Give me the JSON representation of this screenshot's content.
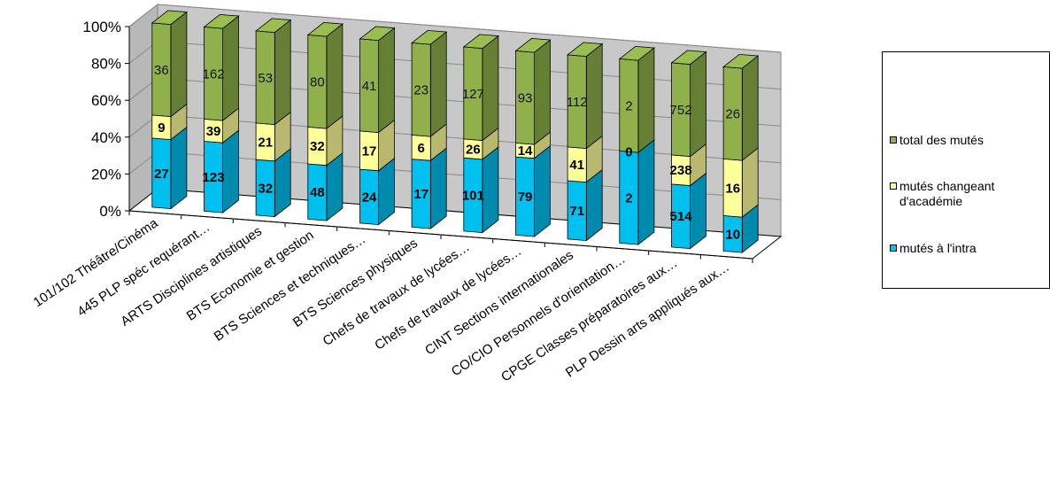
{
  "chart_data": {
    "type": "bar",
    "stacked": "percent",
    "three_d": true,
    "categories": [
      "101/102 Théâtre/Cinéma",
      "445 PLP spéc requérant…",
      "ARTS Disciplines artistiques",
      "BTS Economie et gestion",
      "BTS Sciences et techniques…",
      "BTS Sciences physiques",
      "Chefs de travaux de lycées…",
      "Chefs de travaux de lycées…",
      "CINT Sections internationales",
      "CO/CIO Personnels d'orientation…",
      "CPGE Classes préparatoires aux…",
      "PLP Dessin arts appliqués aux…"
    ],
    "series": [
      {
        "name": "mutés à l'intra",
        "color": "#00c0f0",
        "values": [
          27,
          123,
          32,
          48,
          24,
          17,
          101,
          79,
          71,
          2,
          514,
          10
        ]
      },
      {
        "name": "mutés changeant d'académie",
        "color": "#ffff99",
        "values": [
          9,
          39,
          21,
          32,
          17,
          6,
          26,
          14,
          41,
          0,
          238,
          16
        ]
      },
      {
        "name": "total des mutés",
        "color": "#8fb04a",
        "values": [
          36,
          162,
          53,
          80,
          41,
          23,
          127,
          93,
          112,
          2,
          752,
          26
        ]
      }
    ],
    "y_ticks": [
      "0%",
      "20%",
      "40%",
      "60%",
      "80%",
      "100%"
    ],
    "ylim": [
      0,
      100
    ],
    "grid": false,
    "legend_position": "right"
  },
  "legend": {
    "items": [
      {
        "label": "total des mutés",
        "color": "#8fb04a"
      },
      {
        "label": "mutés changeant d'académie",
        "color": "#ffff99"
      },
      {
        "label": "mutés à l'intra",
        "color": "#00c0f0"
      }
    ]
  }
}
